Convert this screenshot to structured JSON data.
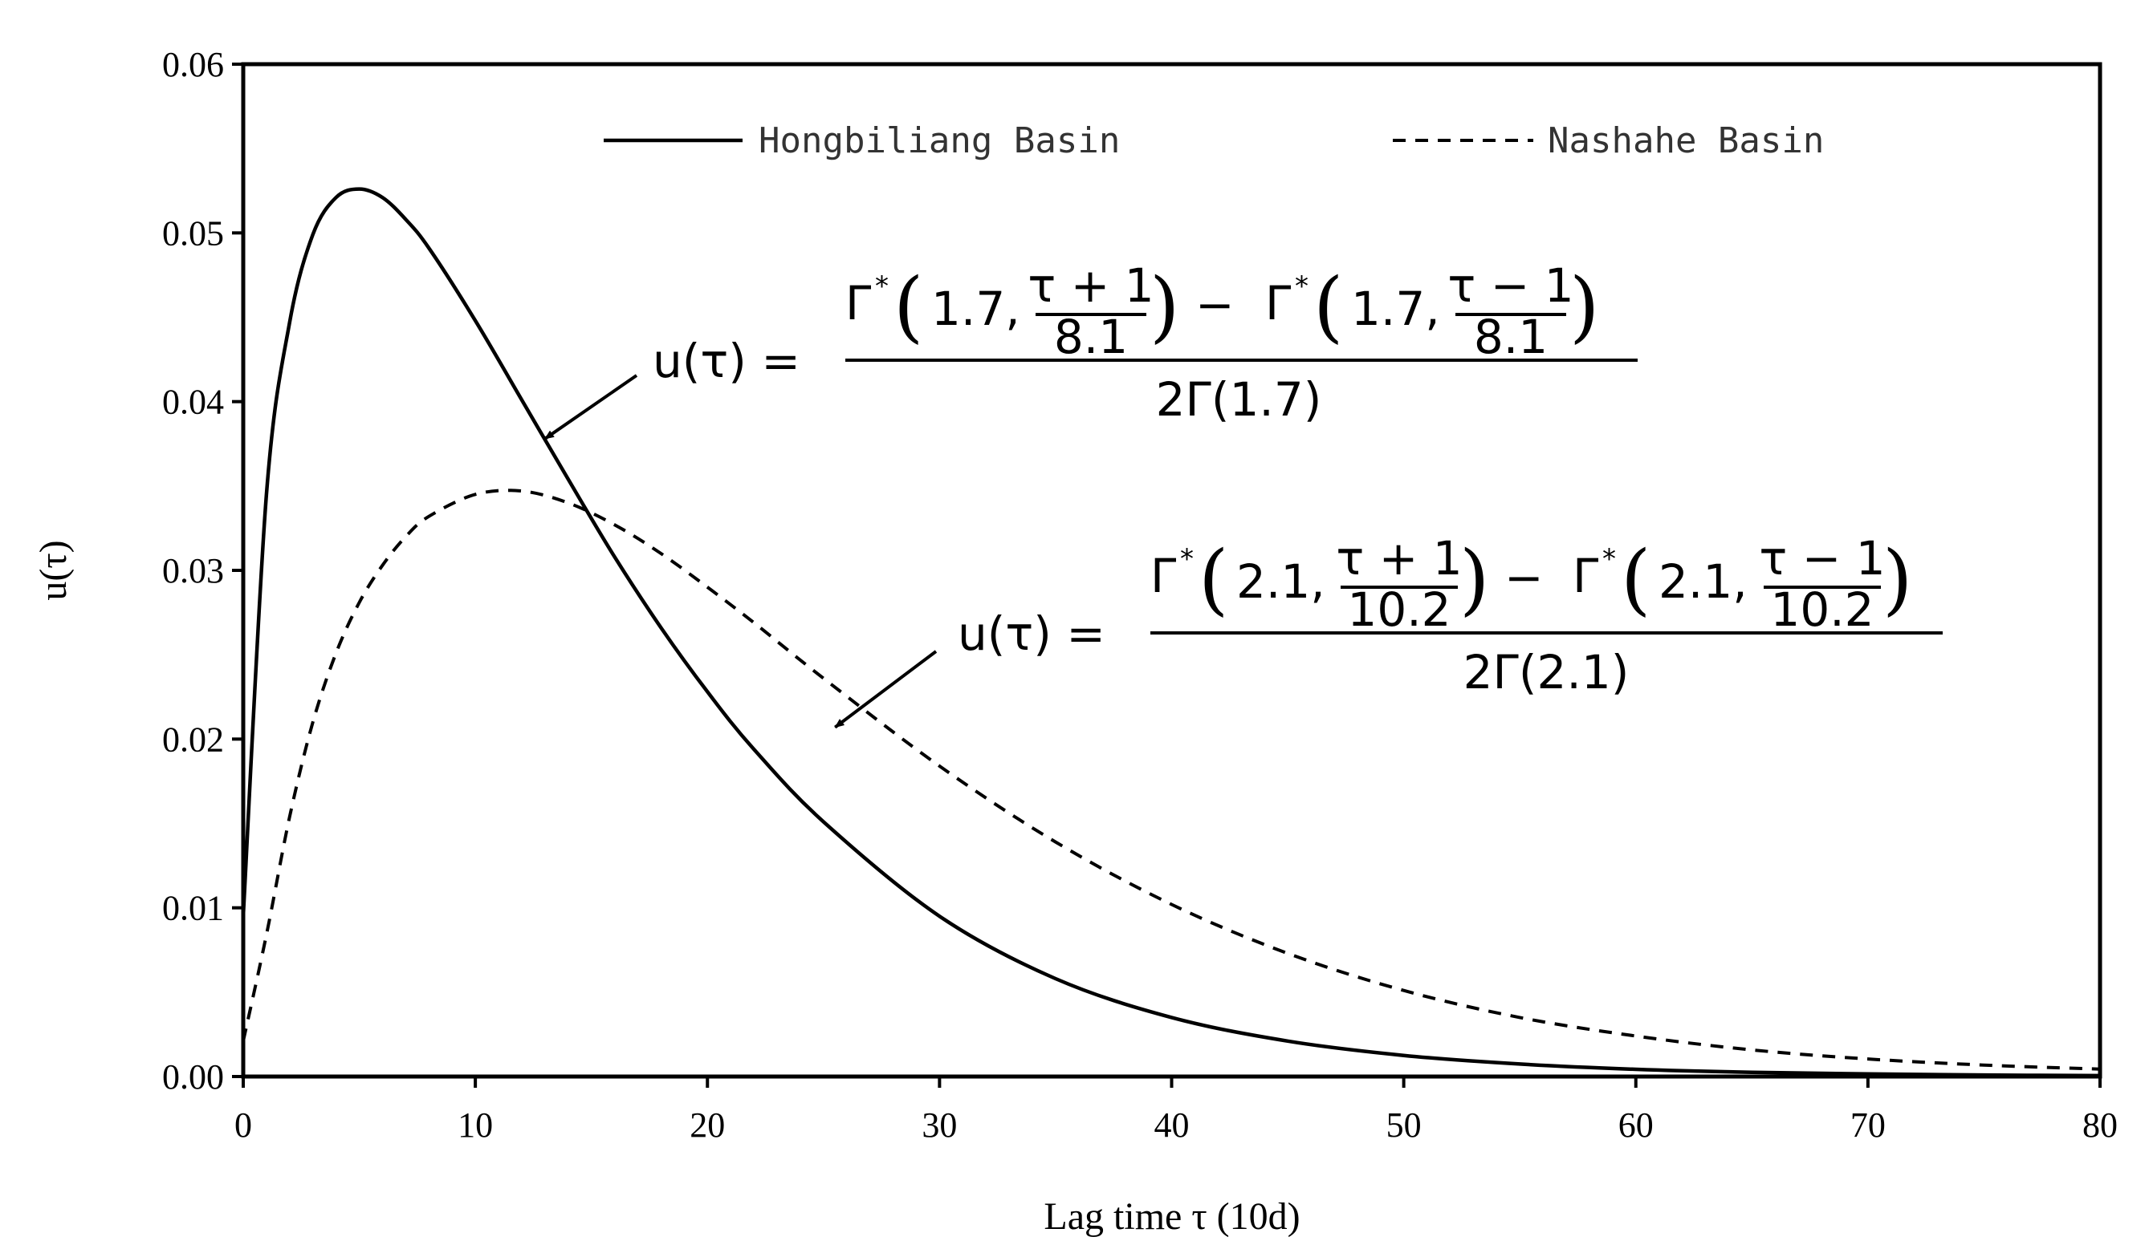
{
  "chart_data": {
    "type": "line",
    "title": "",
    "xlabel": "Lag time τ (10d)",
    "ylabel": "u(τ)",
    "xlim": [
      0,
      80
    ],
    "ylim": [
      0,
      0.06
    ],
    "xticks": [
      0,
      10,
      20,
      30,
      40,
      50,
      60,
      70,
      80
    ],
    "xtick_labels": [
      "0",
      "10",
      "20",
      "30",
      "40",
      "50",
      "60",
      "70",
      "80"
    ],
    "yticks": [
      0,
      0.01,
      0.02,
      0.03,
      0.04,
      0.05,
      0.06
    ],
    "ytick_labels": [
      "0.00",
      "0.01",
      "0.02",
      "0.03",
      "0.04",
      "0.05",
      "0.06"
    ],
    "grid": false,
    "legend_position": "top",
    "x": [
      0,
      1,
      2,
      3,
      4,
      5,
      6,
      7,
      8,
      10,
      12,
      14,
      16,
      18,
      20,
      22,
      25,
      30,
      35,
      40,
      45,
      50,
      55,
      60,
      65,
      70,
      75,
      80
    ],
    "series": [
      {
        "name": "Hongbiliang Basin",
        "style": "solid",
        "values": [
          0.0095,
          0.0345,
          0.0447,
          0.0499,
          0.0521,
          0.0526,
          0.0521,
          0.0508,
          0.0491,
          0.0448,
          0.0401,
          0.0354,
          0.0308,
          0.0266,
          0.0228,
          0.0194,
          0.0151,
          0.0095,
          0.0058,
          0.0035,
          0.0021,
          0.00125,
          0.00074,
          0.00043,
          0.00025,
          0.00015,
          9e-05,
          5e-05
        ]
      },
      {
        "name": "Nashahe Basin",
        "style": "dashed",
        "values": [
          0.0021,
          0.0084,
          0.0154,
          0.021,
          0.0251,
          0.0281,
          0.0303,
          0.032,
          0.0332,
          0.0345,
          0.0347,
          0.034,
          0.0327,
          0.031,
          0.029,
          0.0269,
          0.0236,
          0.0184,
          0.0139,
          0.0102,
          0.0073,
          0.0051,
          0.0035,
          0.0024,
          0.00158,
          0.00104,
          0.00068,
          0.00044
        ]
      }
    ],
    "annotations": [
      {
        "series": "Hongbiliang Basin",
        "lhs": "u(τ) =",
        "gamma_star": "Γ",
        "star": "*",
        "shape": "1.7,",
        "num_plus": "τ + 1",
        "num_minus": "τ − 1",
        "scale": "8.1",
        "minus": "−",
        "denominator": "2Γ(1.7)",
        "arrow_target": [
          13,
          0.0378
        ]
      },
      {
        "series": "Nashahe Basin",
        "lhs": "u(τ) =",
        "gamma_star": "Γ",
        "star": "*",
        "shape": "2.1,",
        "num_plus": "τ + 1",
        "num_minus": "τ − 1",
        "scale": "10.2",
        "minus": "−",
        "denominator": "2Γ(2.1)",
        "arrow_target": [
          25.5,
          0.0207
        ]
      }
    ]
  }
}
